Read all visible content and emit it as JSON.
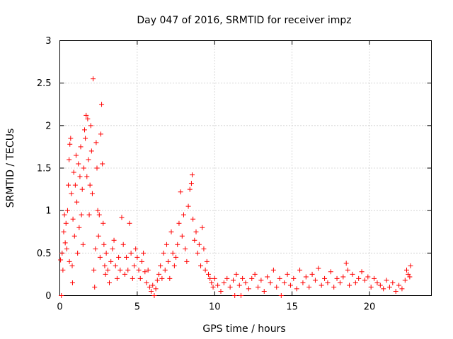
{
  "chart_data": {
    "type": "scatter",
    "title": "Day 047 of 2016, SRMTID for receiver impz",
    "xlabel": "GPS time / hours",
    "ylabel": "SRMTID / TECUs",
    "xlim": [
      0,
      24
    ],
    "ylim": [
      0,
      3
    ],
    "grid": true,
    "marker": "plus",
    "marker_color": "#ff0000",
    "x_ticks": [
      0,
      5,
      10,
      15,
      20
    ],
    "x_tick_labels": [
      "0",
      "5",
      "10",
      "15",
      "20"
    ],
    "y_ticks": [
      0,
      0.5,
      1,
      1.5,
      2,
      2.5,
      3
    ],
    "y_tick_labels": [
      "0",
      "0.5",
      "1",
      "1.5",
      "2",
      "2.5",
      "3"
    ],
    "points": [
      [
        0.05,
        0.42
      ],
      [
        0.1,
        0.0
      ],
      [
        0.15,
        0.5
      ],
      [
        0.2,
        0.3
      ],
      [
        0.25,
        0.75
      ],
      [
        0.3,
        0.95
      ],
      [
        0.35,
        0.62
      ],
      [
        0.4,
        0.85
      ],
      [
        0.45,
        0.55
      ],
      [
        0.5,
        1.0
      ],
      [
        0.55,
        1.3
      ],
      [
        0.6,
        1.6
      ],
      [
        0.62,
        0.4
      ],
      [
        0.65,
        1.78
      ],
      [
        0.7,
        1.85
      ],
      [
        0.75,
        1.2
      ],
      [
        0.8,
        0.35
      ],
      [
        0.82,
        0.15
      ],
      [
        0.85,
        0.9
      ],
      [
        0.9,
        1.45
      ],
      [
        0.95,
        0.7
      ],
      [
        1.0,
        1.3
      ],
      [
        1.05,
        1.65
      ],
      [
        1.1,
        1.1
      ],
      [
        1.15,
        0.5
      ],
      [
        1.2,
        1.55
      ],
      [
        1.25,
        0.8
      ],
      [
        1.3,
        1.4
      ],
      [
        1.35,
        1.75
      ],
      [
        1.4,
        0.95
      ],
      [
        1.45,
        1.25
      ],
      [
        1.5,
        0.6
      ],
      [
        1.55,
        1.5
      ],
      [
        1.6,
        1.95
      ],
      [
        1.65,
        1.85
      ],
      [
        1.7,
        2.12
      ],
      [
        1.75,
        1.4
      ],
      [
        1.8,
        2.08
      ],
      [
        1.85,
        1.6
      ],
      [
        1.9,
        0.95
      ],
      [
        1.95,
        1.3
      ],
      [
        2.0,
        2.0
      ],
      [
        2.05,
        1.7
      ],
      [
        2.1,
        1.2
      ],
      [
        2.15,
        2.55
      ],
      [
        2.2,
        0.3
      ],
      [
        2.25,
        0.1
      ],
      [
        2.3,
        0.55
      ],
      [
        2.35,
        1.8
      ],
      [
        2.4,
        1.5
      ],
      [
        2.45,
        1.0
      ],
      [
        2.5,
        0.7
      ],
      [
        2.55,
        0.95
      ],
      [
        2.6,
        0.45
      ],
      [
        2.65,
        1.9
      ],
      [
        2.7,
        2.25
      ],
      [
        2.75,
        1.55
      ],
      [
        2.8,
        0.85
      ],
      [
        2.85,
        0.6
      ],
      [
        2.9,
        0.35
      ],
      [
        2.95,
        0.25
      ],
      [
        3.0,
        0.5
      ],
      [
        3.1,
        0.3
      ],
      [
        3.2,
        0.15
      ],
      [
        3.3,
        0.4
      ],
      [
        3.4,
        0.55
      ],
      [
        3.5,
        0.65
      ],
      [
        3.6,
        0.35
      ],
      [
        3.7,
        0.2
      ],
      [
        3.8,
        0.45
      ],
      [
        3.9,
        0.3
      ],
      [
        4.0,
        0.92
      ],
      [
        4.1,
        0.6
      ],
      [
        4.2,
        0.25
      ],
      [
        4.3,
        0.45
      ],
      [
        4.4,
        0.3
      ],
      [
        4.5,
        0.85
      ],
      [
        4.6,
        0.5
      ],
      [
        4.7,
        0.2
      ],
      [
        4.8,
        0.35
      ],
      [
        4.9,
        0.55
      ],
      [
        5.0,
        0.45
      ],
      [
        5.1,
        0.3
      ],
      [
        5.2,
        0.2
      ],
      [
        5.3,
        0.4
      ],
      [
        5.4,
        0.5
      ],
      [
        5.5,
        0.28
      ],
      [
        5.6,
        0.15
      ],
      [
        5.7,
        0.3
      ],
      [
        5.8,
        0.1
      ],
      [
        5.9,
        0.05
      ],
      [
        6.0,
        0.12
      ],
      [
        6.1,
        0.0
      ],
      [
        6.2,
        0.08
      ],
      [
        6.3,
        0.18
      ],
      [
        6.4,
        0.25
      ],
      [
        6.5,
        0.35
      ],
      [
        6.6,
        0.2
      ],
      [
        6.7,
        0.5
      ],
      [
        6.8,
        0.3
      ],
      [
        6.9,
        0.6
      ],
      [
        7.0,
        0.4
      ],
      [
        7.1,
        0.2
      ],
      [
        7.2,
        0.75
      ],
      [
        7.3,
        0.5
      ],
      [
        7.4,
        0.35
      ],
      [
        7.5,
        0.45
      ],
      [
        7.6,
        0.6
      ],
      [
        7.7,
        0.85
      ],
      [
        7.8,
        1.22
      ],
      [
        7.9,
        0.7
      ],
      [
        8.0,
        0.95
      ],
      [
        8.1,
        0.55
      ],
      [
        8.2,
        0.4
      ],
      [
        8.3,
        1.05
      ],
      [
        8.4,
        1.25
      ],
      [
        8.5,
        1.32
      ],
      [
        8.55,
        1.42
      ],
      [
        8.6,
        0.9
      ],
      [
        8.7,
        0.65
      ],
      [
        8.8,
        0.75
      ],
      [
        8.9,
        0.5
      ],
      [
        9.0,
        0.6
      ],
      [
        9.1,
        0.35
      ],
      [
        9.2,
        0.8
      ],
      [
        9.3,
        0.55
      ],
      [
        9.4,
        0.3
      ],
      [
        9.5,
        0.4
      ],
      [
        9.6,
        0.25
      ],
      [
        9.7,
        0.2
      ],
      [
        9.8,
        0.15
      ],
      [
        9.9,
        0.1
      ],
      [
        10.0,
        0.2
      ],
      [
        10.2,
        0.12
      ],
      [
        10.4,
        0.05
      ],
      [
        10.6,
        0.15
      ],
      [
        10.8,
        0.2
      ],
      [
        11.0,
        0.1
      ],
      [
        11.2,
        0.18
      ],
      [
        11.3,
        0.0
      ],
      [
        11.4,
        0.25
      ],
      [
        11.6,
        0.12
      ],
      [
        11.7,
        0.0
      ],
      [
        11.8,
        0.2
      ],
      [
        12.0,
        0.15
      ],
      [
        12.2,
        0.08
      ],
      [
        12.4,
        0.2
      ],
      [
        12.6,
        0.25
      ],
      [
        12.8,
        0.1
      ],
      [
        13.0,
        0.18
      ],
      [
        13.2,
        0.05
      ],
      [
        13.4,
        0.22
      ],
      [
        13.6,
        0.15
      ],
      [
        13.8,
        0.3
      ],
      [
        14.0,
        0.1
      ],
      [
        14.2,
        0.2
      ],
      [
        14.3,
        0.0
      ],
      [
        14.5,
        0.15
      ],
      [
        14.7,
        0.25
      ],
      [
        14.9,
        0.12
      ],
      [
        15.1,
        0.2
      ],
      [
        15.3,
        0.08
      ],
      [
        15.5,
        0.3
      ],
      [
        15.7,
        0.15
      ],
      [
        15.9,
        0.22
      ],
      [
        16.1,
        0.1
      ],
      [
        16.3,
        0.25
      ],
      [
        16.5,
        0.18
      ],
      [
        16.7,
        0.32
      ],
      [
        16.9,
        0.12
      ],
      [
        17.1,
        0.2
      ],
      [
        17.3,
        0.15
      ],
      [
        17.5,
        0.28
      ],
      [
        17.7,
        0.1
      ],
      [
        17.9,
        0.2
      ],
      [
        18.1,
        0.15
      ],
      [
        18.3,
        0.22
      ],
      [
        18.5,
        0.38
      ],
      [
        18.6,
        0.3
      ],
      [
        18.7,
        0.12
      ],
      [
        18.9,
        0.25
      ],
      [
        19.1,
        0.15
      ],
      [
        19.3,
        0.2
      ],
      [
        19.5,
        0.28
      ],
      [
        19.7,
        0.18
      ],
      [
        19.9,
        0.22
      ],
      [
        20.1,
        0.1
      ],
      [
        20.3,
        0.2
      ],
      [
        20.5,
        0.15
      ],
      [
        20.7,
        0.12
      ],
      [
        20.9,
        0.08
      ],
      [
        21.1,
        0.18
      ],
      [
        21.3,
        0.1
      ],
      [
        21.5,
        0.15
      ],
      [
        21.7,
        0.05
      ],
      [
        21.9,
        0.12
      ],
      [
        22.1,
        0.08
      ],
      [
        22.3,
        0.18
      ],
      [
        22.4,
        0.3
      ],
      [
        22.5,
        0.25
      ],
      [
        22.6,
        0.22
      ],
      [
        22.65,
        0.35
      ]
    ]
  }
}
